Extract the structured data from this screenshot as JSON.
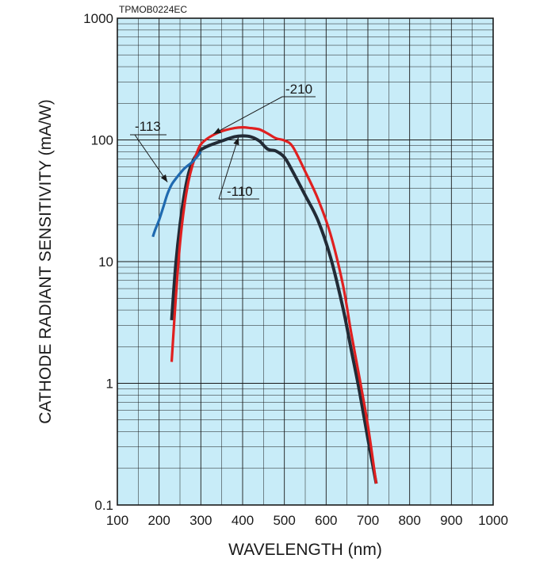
{
  "chart_data": {
    "type": "line",
    "figure_code": "TPMOB0224EC",
    "xlabel": "WAVELENGTH (nm)",
    "ylabel": "CATHODE RADIANT SENSITIVITY (mA/W)",
    "xlim": [
      100,
      1000
    ],
    "ylim": [
      0.1,
      1000
    ],
    "yscale": "log",
    "grid": true,
    "background": "#c8ecf8",
    "x_ticks": [
      100,
      200,
      300,
      400,
      500,
      600,
      700,
      800,
      900,
      1000
    ],
    "x_tick_labels": [
      "100",
      "200",
      "300",
      "400",
      "500",
      "600",
      "700",
      "800",
      "900",
      "1000"
    ],
    "y_ticks": [
      0.1,
      1,
      10,
      100,
      1000
    ],
    "y_tick_labels": [
      "0.1",
      "1",
      "10",
      "100",
      "1000"
    ],
    "series": [
      {
        "name": "-110",
        "color": "#222b36",
        "x": [
          230,
          240,
          250,
          260,
          270,
          280,
          290,
          300,
          320,
          350,
          380,
          400,
          420,
          440,
          460,
          480,
          500,
          520,
          550,
          580,
          610,
          640,
          660,
          680,
          700,
          720
        ],
        "y": [
          3.3,
          9.5,
          20,
          35,
          52,
          66,
          76,
          83,
          90,
          98,
          106,
          108,
          106,
          98,
          84,
          81,
          72,
          55,
          35,
          22,
          11,
          4.2,
          1.9,
          0.85,
          0.35,
          0.15
        ]
      },
      {
        "name": "-113",
        "color": "#1f6ab0",
        "x": [
          185,
          190,
          200,
          210,
          220,
          230,
          240,
          250,
          260,
          270,
          280,
          290,
          300
        ],
        "y": [
          16,
          18,
          22,
          28,
          36,
          43,
          48,
          53,
          58,
          62,
          66,
          72,
          80
        ]
      },
      {
        "name": "-210",
        "color": "#e02020",
        "x": [
          230,
          240,
          250,
          260,
          270,
          280,
          290,
          300,
          320,
          350,
          380,
          400,
          420,
          440,
          460,
          480,
          500,
          520,
          550,
          580,
          610,
          640,
          660,
          680,
          700,
          720
        ],
        "y": [
          1.5,
          5,
          14,
          28,
          45,
          62,
          78,
          92,
          105,
          118,
          125,
          127,
          125,
          122,
          113,
          103,
          99,
          88,
          55,
          33,
          17,
          6.5,
          2.6,
          1.1,
          0.45,
          0.15
        ]
      }
    ],
    "annotations": [
      {
        "text": "-110",
        "series": "-110",
        "arrow_to": [
          390,
          105
        ]
      },
      {
        "text": "-113",
        "series": "-113",
        "arrow_to": [
          220,
          45
        ]
      },
      {
        "text": "-210",
        "series": "-210",
        "arrow_to": [
          330,
          112
        ]
      }
    ]
  }
}
